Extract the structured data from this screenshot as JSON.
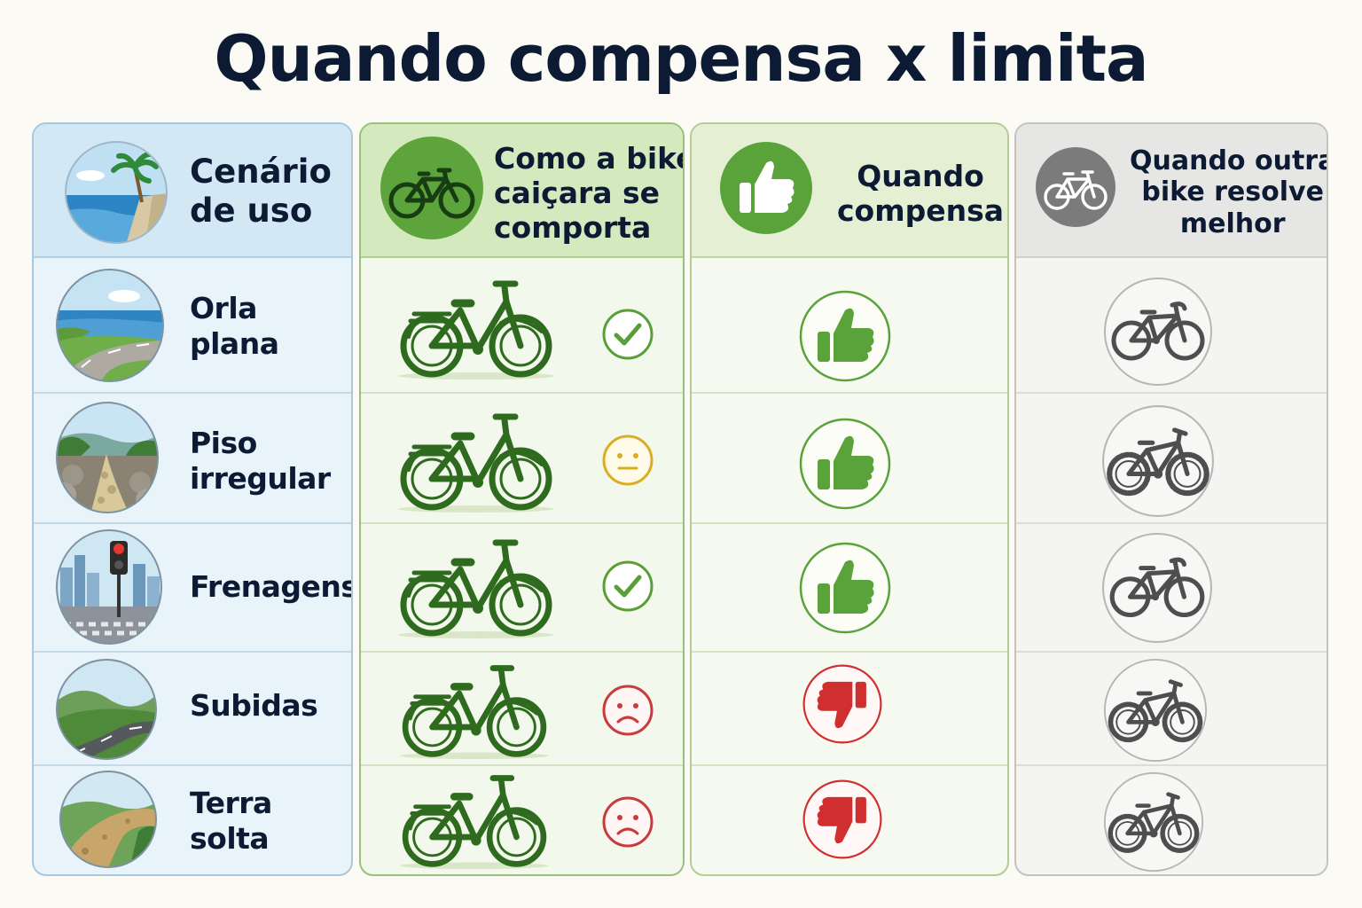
{
  "title": "Quando compensa x limita",
  "headers": {
    "cenario": [
      "Cenário",
      "de uso"
    ],
    "comporta": [
      "Como a bike",
      "caiçara se",
      "comporta"
    ],
    "compensa": [
      "Quando",
      "compensa"
    ],
    "outra": [
      "Quando outra",
      "bike resolve",
      "melhor"
    ]
  },
  "rows": [
    {
      "label": [
        "Orla",
        "plana"
      ],
      "scene": "beach-road-icon",
      "status": "check",
      "verdict": "thumbs-up",
      "alternative": "hybrid-bike-icon"
    },
    {
      "label": [
        "Piso",
        "irregular"
      ],
      "scene": "rocky-trail-icon",
      "status": "neutral",
      "verdict": "thumbs-up",
      "alternative": "mountain-bike-icon"
    },
    {
      "label": [
        "Frenagens"
      ],
      "scene": "traffic-light-icon",
      "status": "check",
      "verdict": "thumbs-up",
      "alternative": "hybrid-bike-icon"
    },
    {
      "label": [
        "Subidas"
      ],
      "scene": "hill-road-icon",
      "status": "sad",
      "verdict": "thumbs-down",
      "alternative": "mountain-bike-icon"
    },
    {
      "label": [
        "Terra",
        "solta"
      ],
      "scene": "dirt-path-icon",
      "status": "sad",
      "verdict": "thumbs-down",
      "alternative": "mountain-bike-icon"
    }
  ],
  "colors": {
    "title": "#0c1a33",
    "green": "#2f6b1e",
    "thumb_green": "#5aa33a",
    "thumb_red": "#cf2f2f",
    "check": "#5a9e38",
    "neutral": "#d9ae22",
    "sad": "#c73b3b",
    "grey": "#4e4e4e"
  }
}
